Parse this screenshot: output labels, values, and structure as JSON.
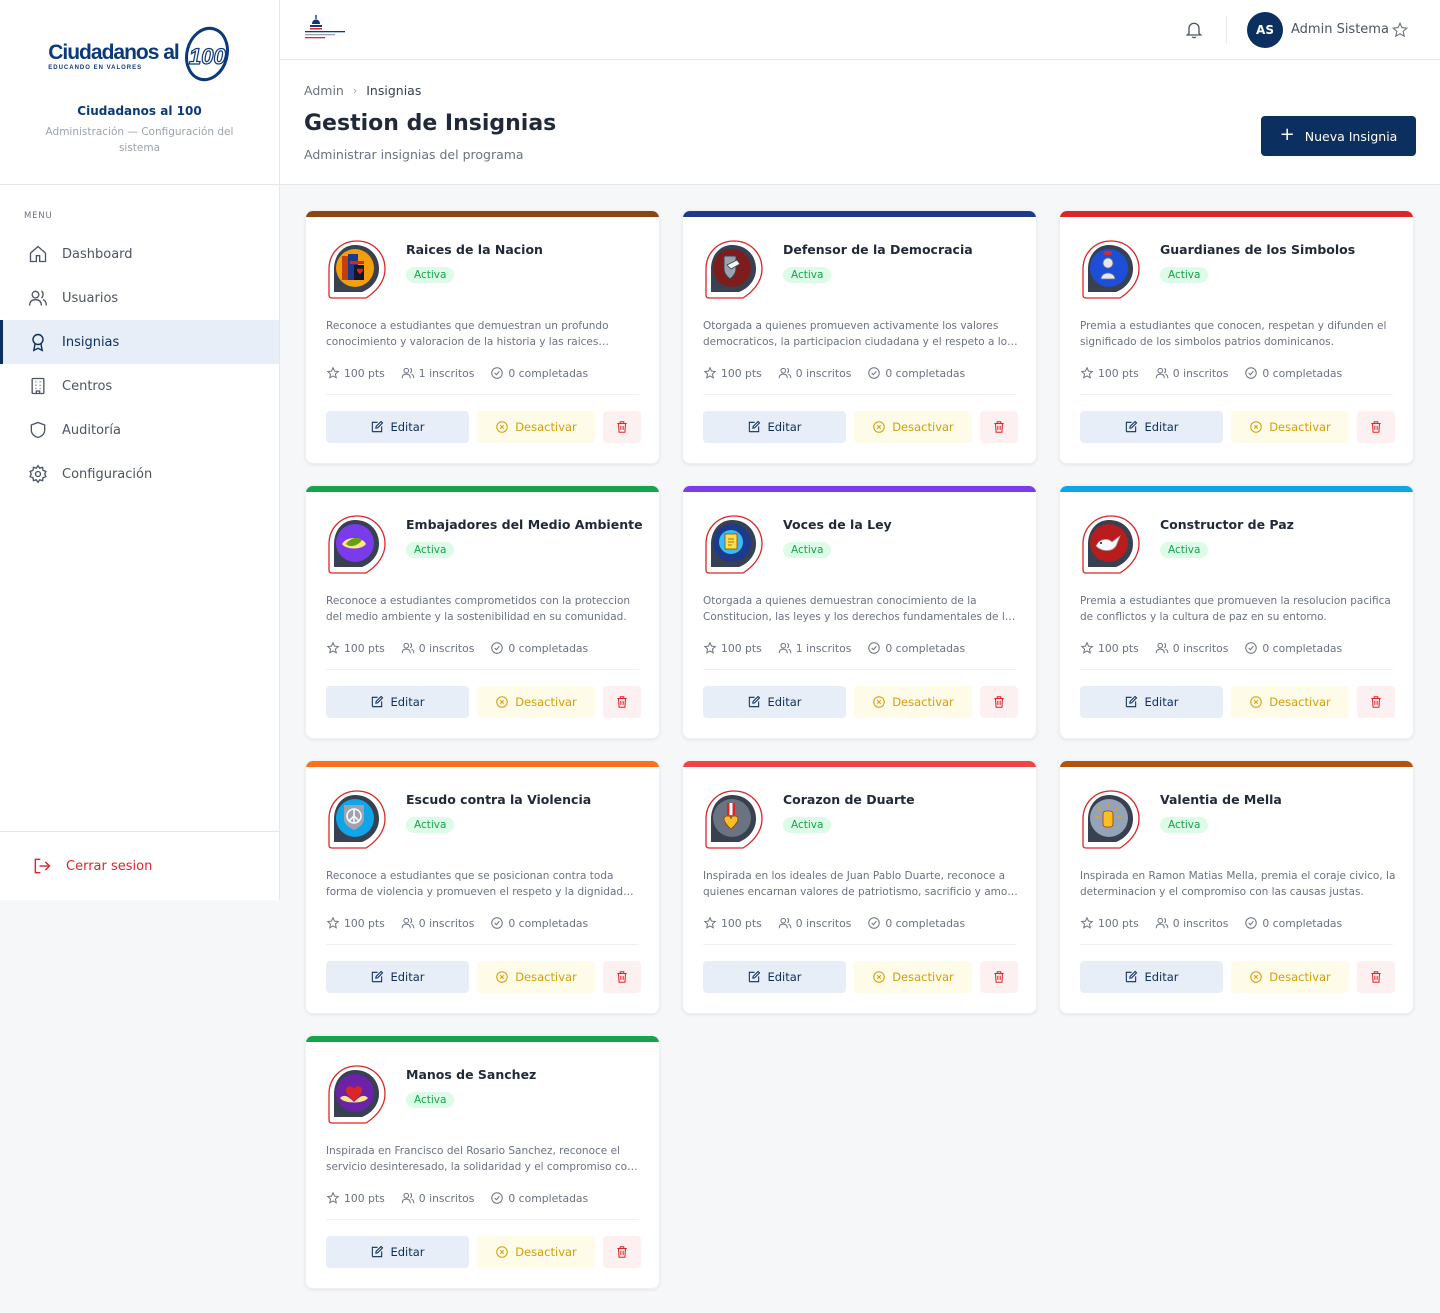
{
  "brand": {
    "logo_text": "Ciudadanos al",
    "logo_number": "100",
    "logo_tagline": "EDUCANDO EN VALORES",
    "title": "Ciudadanos al 100",
    "subtitle": "Administración — Configuración del sistema"
  },
  "menu_label": "MENU",
  "nav": [
    {
      "label": "Dashboard",
      "icon": "home-icon"
    },
    {
      "label": "Usuarios",
      "icon": "users-icon"
    },
    {
      "label": "Insignias",
      "icon": "award-icon"
    },
    {
      "label": "Centros",
      "icon": "building-icon"
    },
    {
      "label": "Auditoría",
      "icon": "shield-icon"
    },
    {
      "label": "Configuración",
      "icon": "gear-icon"
    }
  ],
  "nav_active": "Insignias",
  "logout_label": "Cerrar sesion",
  "topbar": {
    "avatar_initials": "AS",
    "user_name": "Admin Sistema"
  },
  "breadcrumb": [
    "Admin",
    "Insignias"
  ],
  "page_title": "Gestion de Insignias",
  "page_subtitle": "Administrar insignias del programa",
  "new_button_label": "Nueva Insignia",
  "actions": {
    "edit": "Editar",
    "deactivate": "Desactivar"
  },
  "colors": {
    "primary": "#0b2f5e",
    "active_bg": "#dcfce7",
    "active_text": "#16a34a",
    "danger": "#dc2626",
    "warning": "#d4a008"
  },
  "cards": [
    {
      "title": "Raices de la Nacion",
      "status": "Activa",
      "color": "#8b4513",
      "icon": "flag-heart-icon",
      "description": "Reconoce a estudiantes que demuestran un profundo conocimiento y valoracion de la historia y las raices culturales de la nacion.",
      "points": "100 pts",
      "enrolled": "1 inscritos",
      "completed": "0 completadas"
    },
    {
      "title": "Defensor de la Democracia",
      "status": "Activa",
      "color": "#1e3a8a",
      "icon": "shield-hand-icon",
      "description": "Otorgada a quienes promueven activamente los valores democraticos, la participacion ciudadana y el respeto a los derechos.",
      "points": "100 pts",
      "enrolled": "0 inscritos",
      "completed": "0 completadas"
    },
    {
      "title": "Guardianes de los Simbolos",
      "status": "Activa",
      "color": "#dc2626",
      "icon": "bust-icon",
      "description": "Premia a estudiantes que conocen, respetan y difunden el significado de los simbolos patrios dominicanos.",
      "points": "100 pts",
      "enrolled": "0 inscritos",
      "completed": "0 completadas"
    },
    {
      "title": "Embajadores del Medio Ambiente",
      "status": "Activa",
      "color": "#16a34a",
      "icon": "leaf-hands-icon",
      "description": "Reconoce a estudiantes comprometidos con la proteccion del medio ambiente y la sostenibilidad en su comunidad.",
      "points": "100 pts",
      "enrolled": "0 inscritos",
      "completed": "0 completadas"
    },
    {
      "title": "Voces de la Ley",
      "status": "Activa",
      "color": "#7c3aed",
      "icon": "speech-document-icon",
      "description": "Otorgada a quienes demuestran conocimiento de la Constitucion, las leyes y los derechos fundamentales de los ciudadanos.",
      "points": "100 pts",
      "enrolled": "1 inscritos",
      "completed": "0 completadas"
    },
    {
      "title": "Constructor de Paz",
      "status": "Activa",
      "color": "#0ea5e9",
      "icon": "dove-icon",
      "description": "Premia a estudiantes que promueven la resolucion pacifica de conflictos y la cultura de paz en su entorno.",
      "points": "100 pts",
      "enrolled": "0 inscritos",
      "completed": "0 completadas"
    },
    {
      "title": "Escudo contra la Violencia",
      "status": "Activa",
      "color": "#f97316",
      "icon": "peace-shield-icon",
      "description": "Reconoce a estudiantes que se posicionan contra toda forma de violencia y promueven el respeto y la dignidad humana.",
      "points": "100 pts",
      "enrolled": "0 inscritos",
      "completed": "0 completadas"
    },
    {
      "title": "Corazon de Duarte",
      "status": "Activa",
      "color": "#ef4444",
      "icon": "medal-heart-icon",
      "description": "Inspirada en los ideales de Juan Pablo Duarte, reconoce a quienes encarnan valores de patriotismo, sacrificio y amor a la patria.",
      "points": "100 pts",
      "enrolled": "0 inscritos",
      "completed": "0 completadas"
    },
    {
      "title": "Valentia de Mella",
      "status": "Activa",
      "color": "#b45309",
      "icon": "fist-rays-icon",
      "description": "Inspirada en Ramon Matias Mella, premia el coraje civico, la determinacion y el compromiso con las causas justas.",
      "points": "100 pts",
      "enrolled": "0 inscritos",
      "completed": "0 completadas"
    },
    {
      "title": "Manos de Sanchez",
      "status": "Activa",
      "color": "#16a34a",
      "icon": "heart-hands-icon",
      "description": "Inspirada en Francisco del Rosario Sanchez, reconoce el servicio desinteresado, la solidaridad y el compromiso con los demas.",
      "points": "100 pts",
      "enrolled": "0 inscritos",
      "completed": "0 completadas"
    }
  ]
}
